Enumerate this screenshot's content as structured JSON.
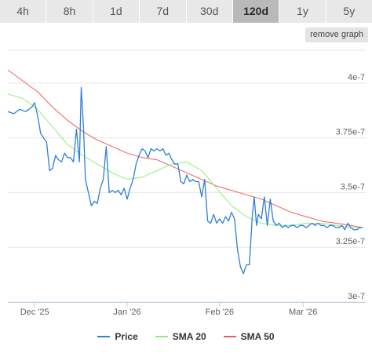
{
  "tabs": [
    {
      "label": "4h",
      "active": false
    },
    {
      "label": "8h",
      "active": false
    },
    {
      "label": "1d",
      "active": false
    },
    {
      "label": "7d",
      "active": false
    },
    {
      "label": "30d",
      "active": false
    },
    {
      "label": "120d",
      "active": true
    },
    {
      "label": "1y",
      "active": false
    },
    {
      "label": "5y",
      "active": false
    }
  ],
  "remove_graph_label": "remove graph",
  "chart_data": {
    "type": "line",
    "title": "",
    "xlabel": "",
    "ylabel": "",
    "x_range": [
      0,
      120
    ],
    "ylim": [
      3e-07,
      4.15e-07
    ],
    "y_ticks": [
      3e-07,
      3.25e-07,
      3.5e-07,
      3.75e-07,
      4e-07
    ],
    "y_tick_labels": [
      "3e-7",
      "3.25e-7",
      "3.5e-7",
      "3.75e-7",
      "4e-7"
    ],
    "x_ticks": [
      {
        "label": "Dec '25",
        "x": 9
      },
      {
        "label": "Jan '26",
        "x": 40
      },
      {
        "label": "Feb '26",
        "x": 71
      },
      {
        "label": "Mar '26",
        "x": 99
      }
    ],
    "grid": "horizontal",
    "legend_position": "bottom",
    "series": [
      {
        "name": "Price",
        "color": "#2f7ed8",
        "points": [
          [
            0,
            3.87e-07
          ],
          [
            2,
            3.86e-07
          ],
          [
            4,
            3.88e-07
          ],
          [
            6,
            3.87e-07
          ],
          [
            8,
            3.89e-07
          ],
          [
            9,
            3.91e-07
          ],
          [
            10,
            3.85e-07
          ],
          [
            11,
            3.77e-07
          ],
          [
            12,
            3.75e-07
          ],
          [
            13,
            3.73e-07
          ],
          [
            14,
            3.6e-07
          ],
          [
            15,
            3.61e-07
          ],
          [
            16,
            3.67e-07
          ],
          [
            17,
            3.65e-07
          ],
          [
            18,
            3.64e-07
          ],
          [
            19,
            3.68e-07
          ],
          [
            20,
            3.66e-07
          ],
          [
            21,
            3.66e-07
          ],
          [
            22,
            3.64e-07
          ],
          [
            23,
            3.79e-07
          ],
          [
            24,
            3.64e-07
          ],
          [
            24.6,
            3.98e-07
          ],
          [
            25.4,
            3.79e-07
          ],
          [
            26,
            3.56e-07
          ],
          [
            27,
            3.5e-07
          ],
          [
            28,
            3.44e-07
          ],
          [
            29,
            3.46e-07
          ],
          [
            30,
            3.45e-07
          ],
          [
            31,
            3.52e-07
          ],
          [
            32,
            3.56e-07
          ],
          [
            33,
            3.71e-07
          ],
          [
            34,
            3.5e-07
          ],
          [
            35,
            3.51e-07
          ],
          [
            36,
            3.5e-07
          ],
          [
            37,
            3.51e-07
          ],
          [
            38,
            3.49e-07
          ],
          [
            39,
            3.52e-07
          ],
          [
            40,
            3.47e-07
          ],
          [
            41,
            3.52e-07
          ],
          [
            42,
            3.56e-07
          ],
          [
            43,
            3.63e-07
          ],
          [
            44,
            3.67e-07
          ],
          [
            45,
            3.7e-07
          ],
          [
            46,
            3.69e-07
          ],
          [
            47,
            3.66e-07
          ],
          [
            48,
            3.7e-07
          ],
          [
            49,
            3.69e-07
          ],
          [
            50,
            3.7e-07
          ],
          [
            51,
            3.69e-07
          ],
          [
            52,
            3.7e-07
          ],
          [
            53,
            3.67e-07
          ],
          [
            54,
            3.68e-07
          ],
          [
            55,
            3.65e-07
          ],
          [
            56,
            3.63e-07
          ],
          [
            57,
            3.63e-07
          ],
          [
            58,
            3.55e-07
          ],
          [
            59,
            3.54e-07
          ],
          [
            60,
            3.58e-07
          ],
          [
            61,
            3.55e-07
          ],
          [
            62,
            3.56e-07
          ],
          [
            63,
            3.55e-07
          ],
          [
            64,
            3.55e-07
          ],
          [
            65,
            3.48e-07
          ],
          [
            66,
            3.56e-07
          ],
          [
            67,
            3.37e-07
          ],
          [
            68,
            3.36e-07
          ],
          [
            69,
            3.4e-07
          ],
          [
            70,
            3.36e-07
          ],
          [
            71,
            3.38e-07
          ],
          [
            72,
            3.36e-07
          ],
          [
            73,
            3.39e-07
          ],
          [
            74,
            3.37e-07
          ],
          [
            75,
            3.41e-07
          ],
          [
            76,
            3.38e-07
          ],
          [
            77,
            3.24e-07
          ],
          [
            78,
            3.16e-07
          ],
          [
            79,
            3.13e-07
          ],
          [
            80,
            3.17e-07
          ],
          [
            81,
            3.17e-07
          ],
          [
            82,
            3.4e-07
          ],
          [
            82.6,
            3.48e-07
          ],
          [
            83.4,
            3.35e-07
          ],
          [
            84,
            3.4e-07
          ],
          [
            85,
            3.38e-07
          ],
          [
            86,
            3.48e-07
          ],
          [
            87,
            3.35e-07
          ],
          [
            88,
            3.47e-07
          ],
          [
            89,
            3.37e-07
          ],
          [
            90,
            3.35e-07
          ],
          [
            91,
            3.36e-07
          ],
          [
            92,
            3.34e-07
          ],
          [
            93,
            3.35e-07
          ],
          [
            94,
            3.34e-07
          ],
          [
            95,
            3.35e-07
          ],
          [
            96,
            3.35e-07
          ],
          [
            97,
            3.34e-07
          ],
          [
            98,
            3.35e-07
          ],
          [
            99,
            3.35e-07
          ],
          [
            100,
            3.34e-07
          ],
          [
            101,
            3.35e-07
          ],
          [
            102,
            3.36e-07
          ],
          [
            103,
            3.35e-07
          ],
          [
            104,
            3.36e-07
          ],
          [
            105,
            3.35e-07
          ],
          [
            106,
            3.35e-07
          ],
          [
            107,
            3.34e-07
          ],
          [
            108,
            3.35e-07
          ],
          [
            109,
            3.35e-07
          ],
          [
            110,
            3.34e-07
          ],
          [
            111,
            3.34e-07
          ],
          [
            112,
            3.35e-07
          ],
          [
            113,
            3.33e-07
          ],
          [
            114,
            3.36e-07
          ],
          [
            115,
            3.34e-07
          ],
          [
            116,
            3.33e-07
          ],
          [
            117,
            3.33e-07
          ],
          [
            118,
            3.34e-07
          ],
          [
            119,
            3.34e-07
          ]
        ]
      },
      {
        "name": "SMA 20",
        "color": "#90ed7d",
        "points": [
          [
            0,
            3.95e-07
          ],
          [
            5,
            3.93e-07
          ],
          [
            10,
            3.88e-07
          ],
          [
            15,
            3.8e-07
          ],
          [
            20,
            3.72e-07
          ],
          [
            25,
            3.67e-07
          ],
          [
            30,
            3.63e-07
          ],
          [
            35,
            3.59e-07
          ],
          [
            40,
            3.56e-07
          ],
          [
            45,
            3.57e-07
          ],
          [
            50,
            3.6e-07
          ],
          [
            55,
            3.63e-07
          ],
          [
            60,
            3.64e-07
          ],
          [
            65,
            3.6e-07
          ],
          [
            70,
            3.52e-07
          ],
          [
            75,
            3.44e-07
          ],
          [
            80,
            3.39e-07
          ],
          [
            85,
            3.36e-07
          ],
          [
            90,
            3.35e-07
          ],
          [
            95,
            3.35e-07
          ],
          [
            100,
            3.36e-07
          ],
          [
            105,
            3.36e-07
          ],
          [
            110,
            3.35e-07
          ],
          [
            115,
            3.34e-07
          ],
          [
            119,
            3.34e-07
          ]
        ]
      },
      {
        "name": "SMA 50",
        "color": "#f45b5b",
        "points": [
          [
            0,
            4.06e-07
          ],
          [
            5,
            4.01e-07
          ],
          [
            10,
            3.96e-07
          ],
          [
            15,
            3.89e-07
          ],
          [
            20,
            3.83e-07
          ],
          [
            25,
            3.78e-07
          ],
          [
            30,
            3.74e-07
          ],
          [
            35,
            3.71e-07
          ],
          [
            40,
            3.68e-07
          ],
          [
            45,
            3.66e-07
          ],
          [
            50,
            3.65e-07
          ],
          [
            55,
            3.62e-07
          ],
          [
            60,
            3.59e-07
          ],
          [
            65,
            3.56e-07
          ],
          [
            70,
            3.53e-07
          ],
          [
            75,
            3.51e-07
          ],
          [
            80,
            3.49e-07
          ],
          [
            85,
            3.47e-07
          ],
          [
            90,
            3.44e-07
          ],
          [
            95,
            3.41e-07
          ],
          [
            100,
            3.39e-07
          ],
          [
            105,
            3.37e-07
          ],
          [
            110,
            3.36e-07
          ],
          [
            115,
            3.35e-07
          ],
          [
            119,
            3.34e-07
          ]
        ]
      }
    ]
  }
}
